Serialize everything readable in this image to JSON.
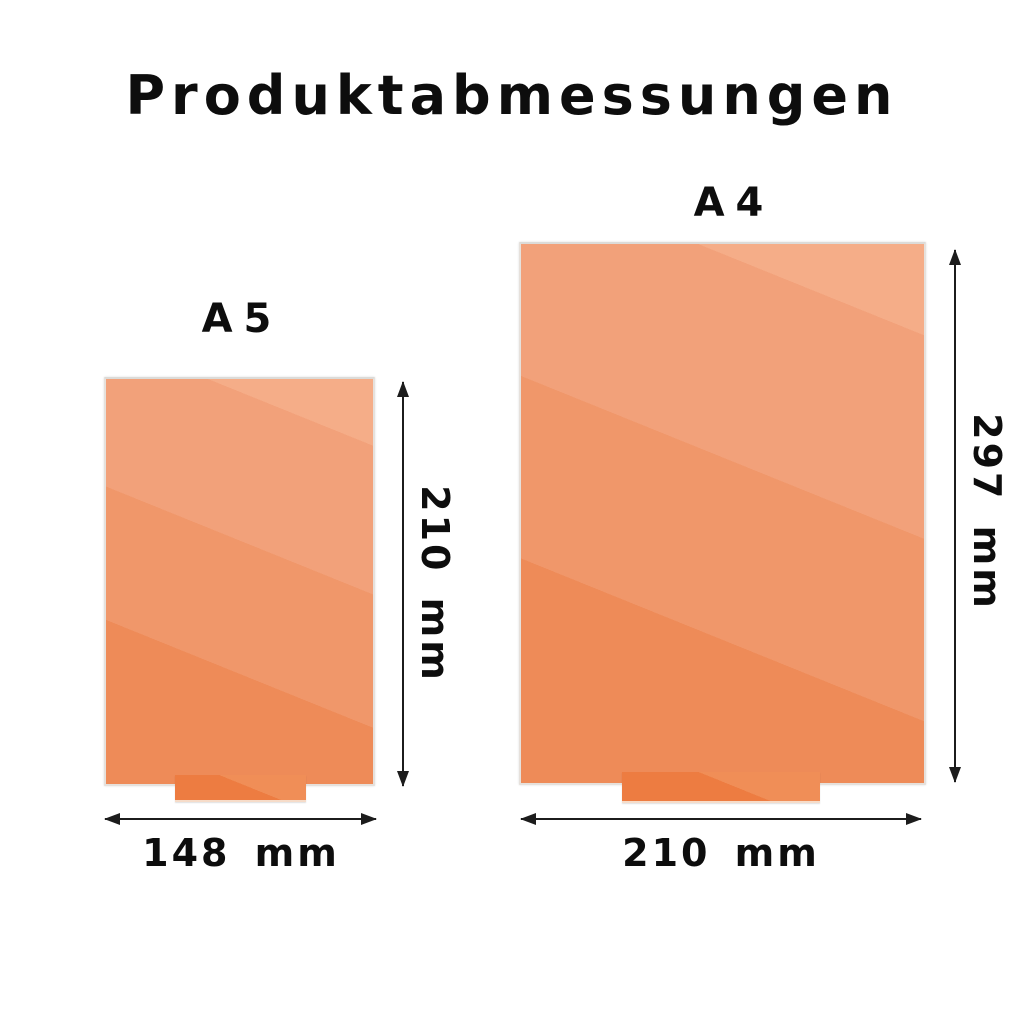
{
  "title": "Produktabmessungen",
  "products": [
    {
      "id": "a5",
      "label": "A5",
      "width_label": "148 mm",
      "height_label": "210 mm"
    },
    {
      "id": "a4",
      "label": "A4",
      "width_label": "210 mm",
      "height_label": "297 mm"
    }
  ],
  "colors": {
    "background": "#ffffff",
    "text": "#0d0d0d",
    "arrow": "#1c1c1c",
    "plaque_light1": "#f5ad88",
    "plaque_light2": "#f2a17a",
    "plaque_mid": "#f0976a",
    "plaque_dark": "#ee8b58",
    "plaque_edge": "#e6e1dc",
    "stand_light": "#f08e57",
    "stand_dark": "#ed7c41"
  }
}
